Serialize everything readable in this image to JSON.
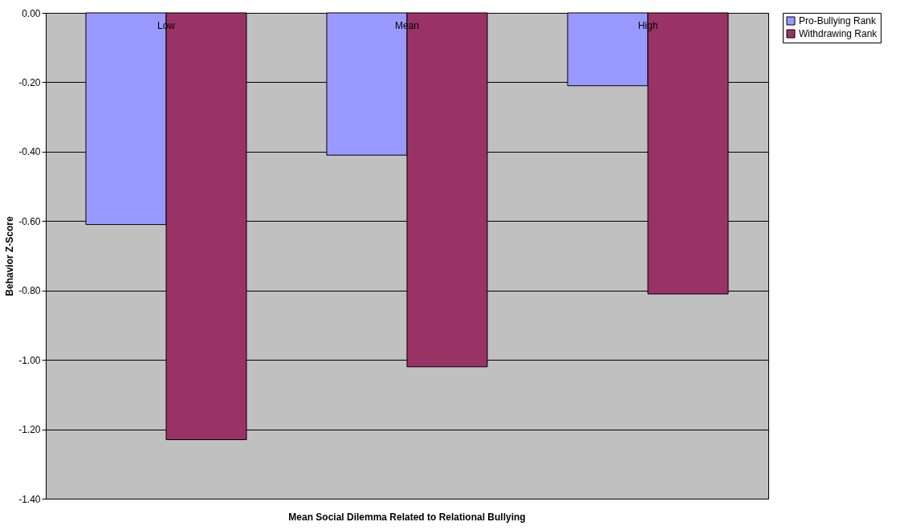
{
  "chart_data": {
    "type": "bar",
    "xlabel": "Mean Social Dilemma Related to Relational Bullying",
    "ylabel": "Behavior Z-Score",
    "categories": [
      "Low",
      "Mean",
      "High"
    ],
    "series": [
      {
        "name": "Pro-Bullying Rank",
        "color": "#9999ff",
        "values": [
          -0.61,
          -0.41,
          -0.21
        ]
      },
      {
        "name": "Withdrawing Rank",
        "color": "#993366",
        "values": [
          -1.23,
          -1.02,
          -0.81
        ]
      }
    ],
    "ylim": [
      -1.4,
      0
    ],
    "yticks": [
      {
        "value": 0,
        "label": "0.00"
      },
      {
        "value": -0.2,
        "label": "-0.20"
      },
      {
        "value": -0.4,
        "label": "-0.40"
      },
      {
        "value": -0.6,
        "label": "-0.60"
      },
      {
        "value": -0.8,
        "label": "-0.80"
      },
      {
        "value": -1.0,
        "label": "-1.00"
      },
      {
        "value": -1.2,
        "label": "-1.20"
      },
      {
        "value": -1.4,
        "label": "-1.40"
      }
    ],
    "grid": "y",
    "legend": "right"
  }
}
